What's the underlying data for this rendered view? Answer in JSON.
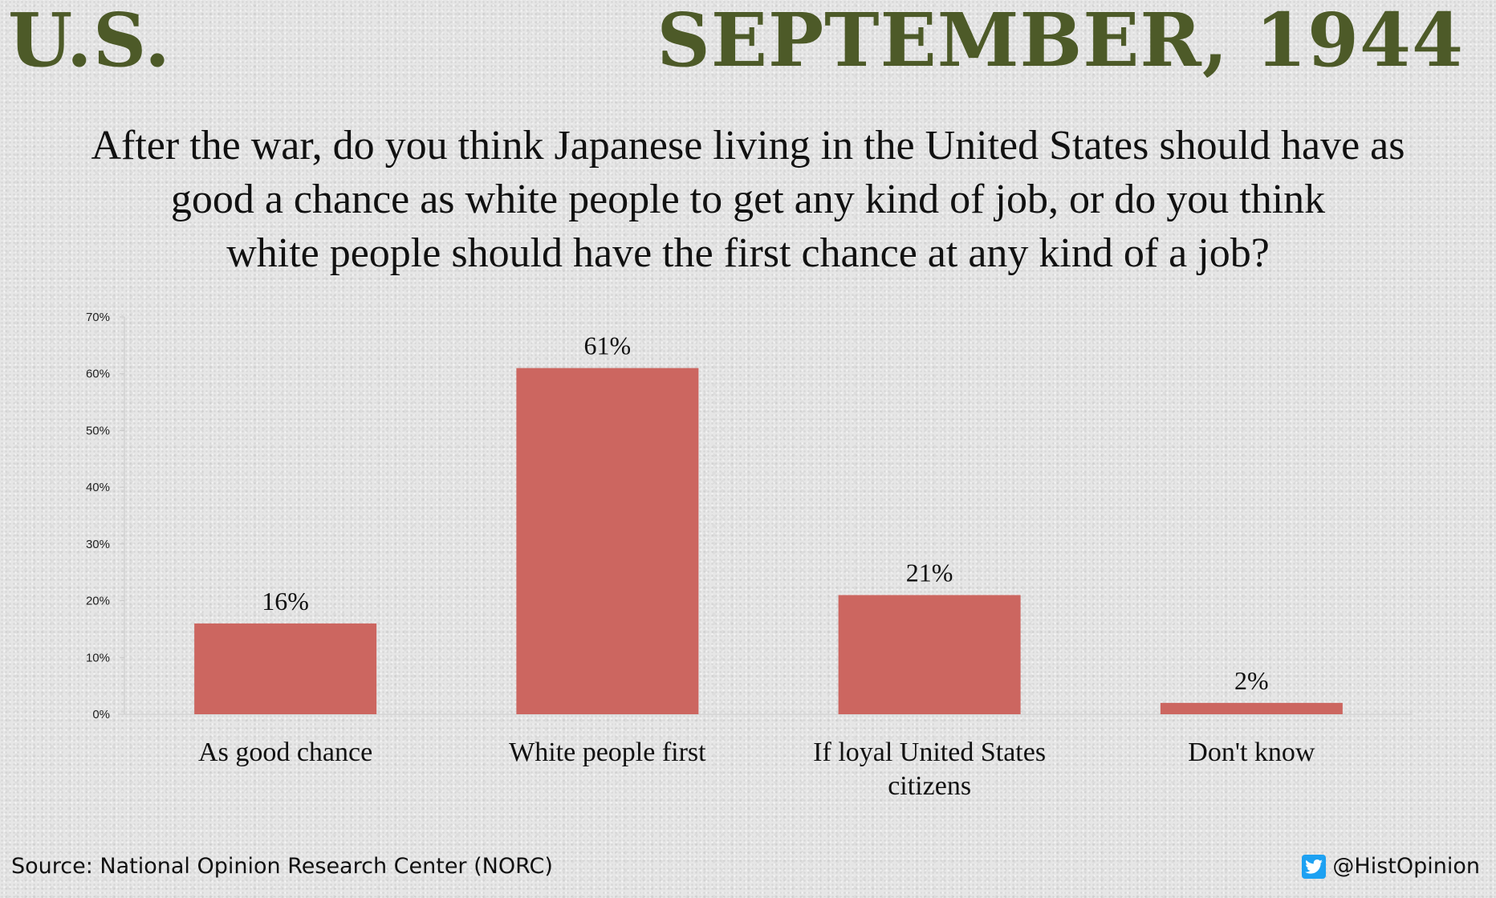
{
  "header": {
    "left": "U.S.",
    "right": "SEPTEMBER, 1944"
  },
  "question_lines": [
    "After the war, do you think Japanese living in the United States should have as",
    "good a chance as white people to get any kind of job, or do you think",
    "white people should have the first chance at any kind of a job?"
  ],
  "chart_data": {
    "type": "bar",
    "categories": [
      "As good chance",
      "White people first",
      "If loyal United States citizens",
      "Don't know"
    ],
    "category_lines": [
      [
        "As good chance"
      ],
      [
        "White people first"
      ],
      [
        "If loyal United States",
        "citizens"
      ],
      [
        "Don't know"
      ]
    ],
    "values": [
      16,
      61,
      21,
      2
    ],
    "data_labels": [
      "16%",
      "61%",
      "21%",
      "2%"
    ],
    "ylim": [
      0,
      70
    ],
    "yticks": [
      0,
      10,
      20,
      30,
      40,
      50,
      60,
      70
    ],
    "ytick_labels": [
      "0%",
      "10%",
      "20%",
      "30%",
      "40%",
      "50%",
      "60%",
      "70%"
    ],
    "bar_color": "#cc6660",
    "grid": false
  },
  "footer": {
    "source": "Source: National Opinion Research Center (NORC)",
    "handle": "@HistOpinion",
    "icon": "twitter-icon"
  },
  "colors": {
    "header": "#4d5a28",
    "twitter": "#1da1f2"
  }
}
